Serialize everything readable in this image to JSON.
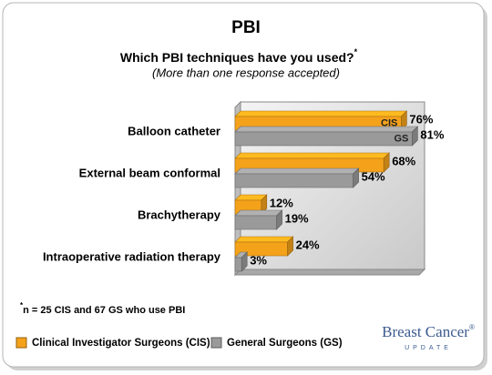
{
  "chart_data": {
    "type": "bar",
    "orientation": "horizontal",
    "title": "PBI",
    "subtitle": "Which PBI techniques have you used?",
    "subtitle_mark": "*",
    "note": "(More than one response accepted)",
    "categories": [
      "Balloon catheter",
      "External beam conformal",
      "Brachytherapy",
      "Intraoperative radiation therapy"
    ],
    "series": [
      {
        "name": "Clinical Investigator Surgeons (CIS)",
        "bar_label": "CIS",
        "color": "#f5a21b",
        "values": [
          76,
          68,
          12,
          24
        ],
        "value_labels": [
          "76%",
          "68%",
          "12%",
          "24%"
        ]
      },
      {
        "name": "General Surgeons (GS)",
        "bar_label": "GS",
        "color": "#9a9a9a",
        "values": [
          81,
          54,
          19,
          3
        ],
        "value_labels": [
          "81%",
          "54%",
          "19%",
          "3%"
        ]
      }
    ],
    "xlim": [
      0,
      85
    ],
    "legend": "bottom",
    "footnote_mark": "*",
    "footnote": "n = 25 CIS and 67 GS who use PBI"
  },
  "logo": {
    "name": "Breast Cancer",
    "mark": "®",
    "tagline": "UPDATE"
  }
}
